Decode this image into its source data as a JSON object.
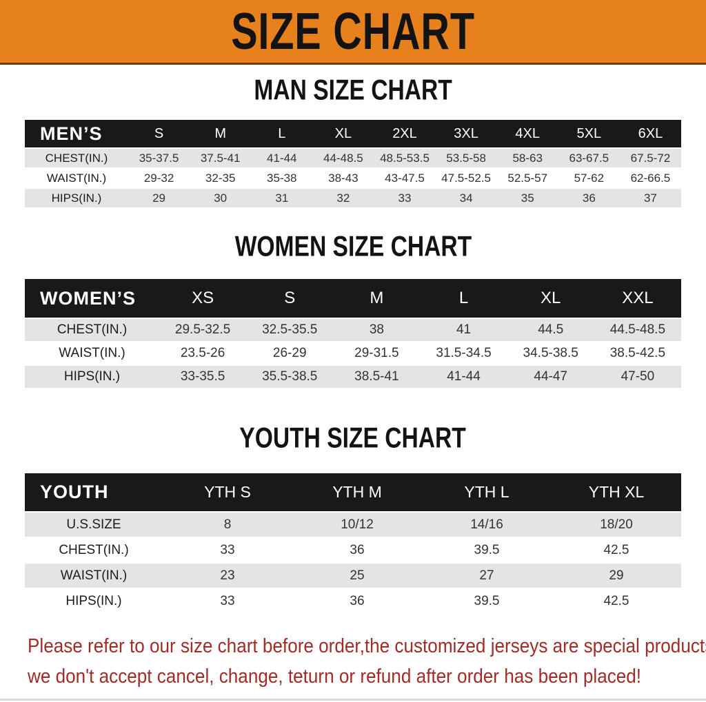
{
  "banner": {
    "title": "SIZE CHART",
    "bg_color": "#e6811d"
  },
  "colors": {
    "table_header_bg": "#191919",
    "row_stripe": "#e4e4e2",
    "footer_text": "#a02c28"
  },
  "sections": [
    {
      "heading": "MAN SIZE CHART",
      "table": {
        "corner": "MEN’S",
        "columns": [
          "S",
          "M",
          "L",
          "XL",
          "2XL",
          "3XL",
          "4XL",
          "5XL",
          "6XL"
        ],
        "rows": [
          {
            "label": "CHEST(IN.)",
            "values": [
              "35-37.5",
              "37.5-41",
              "41-44",
              "44-48.5",
              "48.5-53.5",
              "53.5-58",
              "58-63",
              "63-67.5",
              "67.5-72"
            ]
          },
          {
            "label": "WAIST(IN.)",
            "values": [
              "29-32",
              "32-35",
              "35-38",
              "38-43",
              "43-47.5",
              "47.5-52.5",
              "52.5-57",
              "57-62",
              "62-66.5"
            ]
          },
          {
            "label": "HIPS(IN.)",
            "values": [
              "29",
              "30",
              "31",
              "32",
              "33",
              "34",
              "35",
              "36",
              "37"
            ]
          }
        ]
      }
    },
    {
      "heading": "WOMEN SIZE CHART",
      "table": {
        "corner": "WOMEN’S",
        "columns": [
          "XS",
          "S",
          "M",
          "L",
          "XL",
          "XXL"
        ],
        "rows": [
          {
            "label": "CHEST(IN.)",
            "values": [
              "29.5-32.5",
              "32.5-35.5",
              "38",
              "41",
              "44.5",
              "44.5-48.5"
            ]
          },
          {
            "label": "WAIST(IN.)",
            "values": [
              "23.5-26",
              "26-29",
              "29-31.5",
              "31.5-34.5",
              "34.5-38.5",
              "38.5-42.5"
            ]
          },
          {
            "label": "HIPS(IN.)",
            "values": [
              "33-35.5",
              "35.5-38.5",
              "38.5-41",
              "41-44",
              "44-47",
              "47-50"
            ]
          }
        ]
      }
    },
    {
      "heading": "YOUTH SIZE CHART",
      "table": {
        "corner": "YOUTH",
        "columns": [
          "YTH S",
          "YTH M",
          "YTH L",
          "YTH XL"
        ],
        "rows": [
          {
            "label": "U.S.SIZE",
            "values": [
              "8",
              "10/12",
              "14/16",
              "18/20"
            ]
          },
          {
            "label": "CHEST(IN.)",
            "values": [
              "33",
              "36",
              "39.5",
              "42.5"
            ]
          },
          {
            "label": "WAIST(IN.)",
            "values": [
              "23",
              "25",
              "27",
              "29"
            ]
          },
          {
            "label": "HIPS(IN.)",
            "values": [
              "33",
              "36",
              "39.5",
              "42.5"
            ]
          }
        ]
      }
    }
  ],
  "footer": {
    "line1": "Please refer to our size chart before order,the customized jerseys are special products,",
    "line2": "we don't accept cancel, change, teturn or refund after order has been placed!"
  }
}
